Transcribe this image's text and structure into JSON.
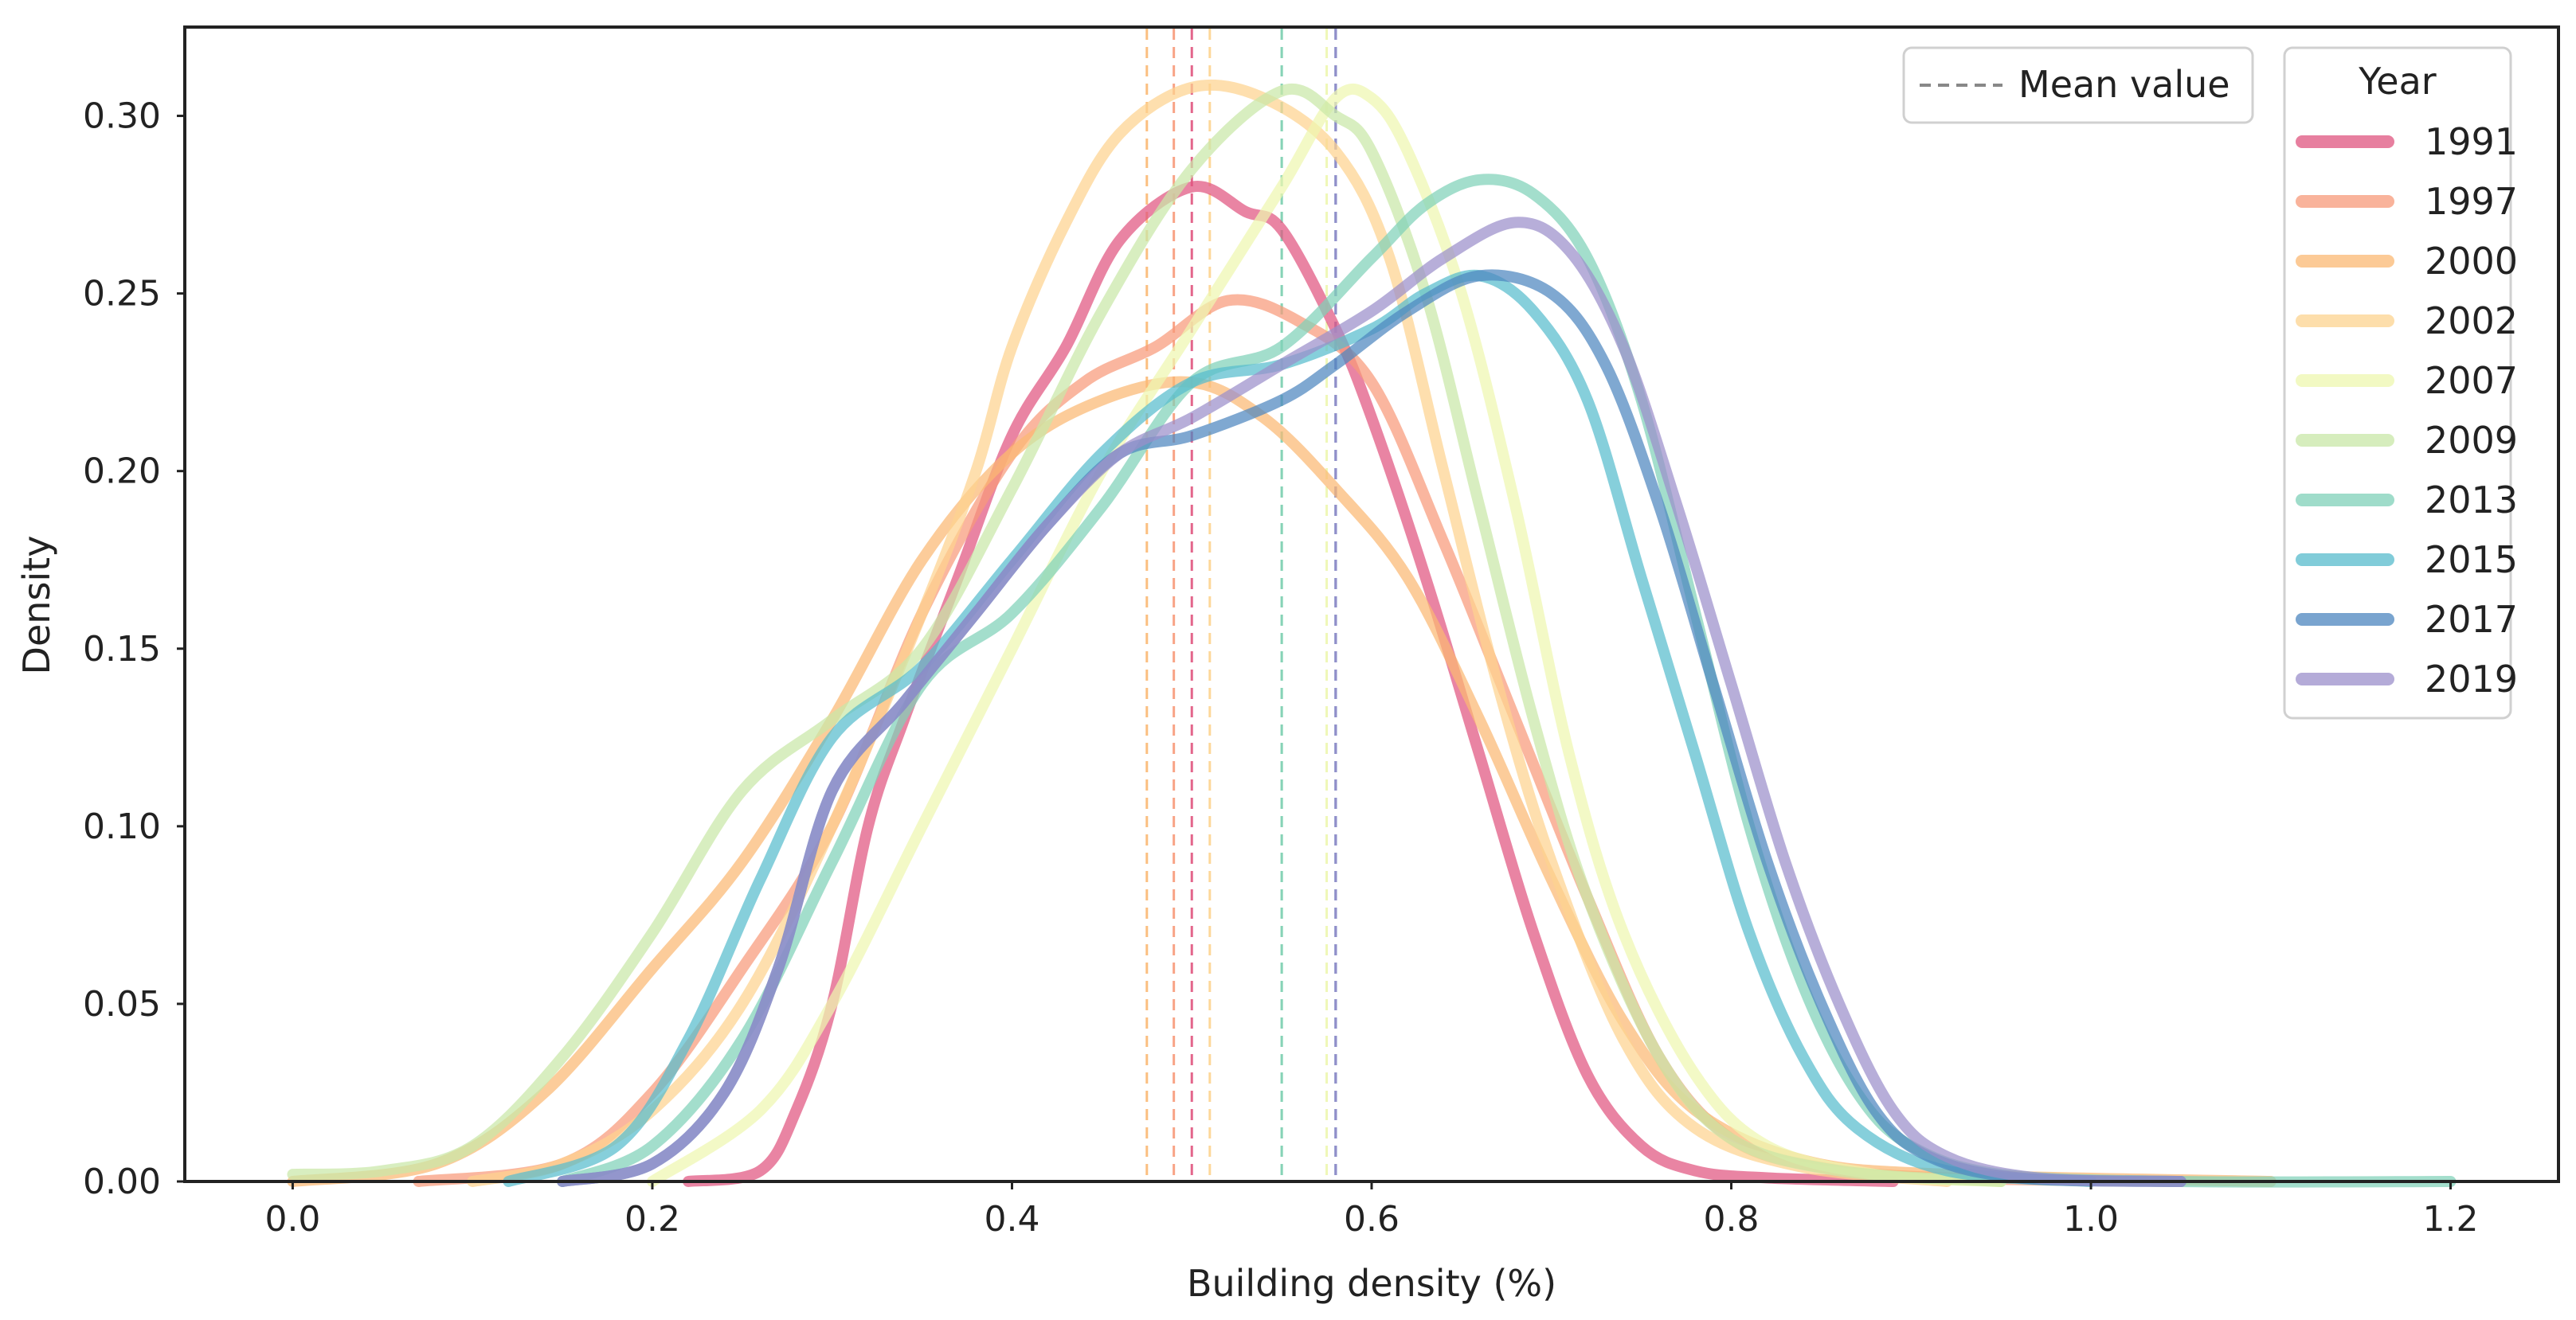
{
  "chart_data": {
    "type": "line",
    "title": "",
    "xlabel": "Building density (%)",
    "ylabel": "Density",
    "xlim": [
      -0.06,
      1.26
    ],
    "ylim": [
      0,
      0.325
    ],
    "xticks": [
      "0.0",
      "0.2",
      "0.4",
      "0.6",
      "0.8",
      "1.0",
      "1.2"
    ],
    "yticks": [
      "0.00",
      "0.05",
      "0.10",
      "0.15",
      "0.20",
      "0.25",
      "0.30"
    ],
    "grid": false,
    "legend": {
      "title": "Year",
      "placement": "top-right",
      "mean_label": "Mean value"
    },
    "series": [
      {
        "name": "1991",
        "color": "#e0557f",
        "mean": 0.5,
        "points": [
          [
            0.22,
            0
          ],
          [
            0.26,
            0.003
          ],
          [
            0.28,
            0.02
          ],
          [
            0.3,
            0.05
          ],
          [
            0.32,
            0.1
          ],
          [
            0.34,
            0.13
          ],
          [
            0.37,
            0.17
          ],
          [
            0.4,
            0.21
          ],
          [
            0.43,
            0.235
          ],
          [
            0.46,
            0.265
          ],
          [
            0.5,
            0.28
          ],
          [
            0.53,
            0.273
          ],
          [
            0.55,
            0.268
          ],
          [
            0.58,
            0.24
          ],
          [
            0.6,
            0.215
          ],
          [
            0.63,
            0.17
          ],
          [
            0.66,
            0.12
          ],
          [
            0.69,
            0.07
          ],
          [
            0.72,
            0.03
          ],
          [
            0.75,
            0.01
          ],
          [
            0.78,
            0.003
          ],
          [
            0.82,
            0.001
          ],
          [
            0.89,
            0
          ]
        ]
      },
      {
        "name": "1997",
        "color": "#f89a7a",
        "mean": 0.49,
        "points": [
          [
            0.07,
            0
          ],
          [
            0.15,
            0.005
          ],
          [
            0.2,
            0.025
          ],
          [
            0.25,
            0.06
          ],
          [
            0.3,
            0.1
          ],
          [
            0.35,
            0.16
          ],
          [
            0.4,
            0.205
          ],
          [
            0.44,
            0.225
          ],
          [
            0.48,
            0.235
          ],
          [
            0.52,
            0.248
          ],
          [
            0.56,
            0.242
          ],
          [
            0.6,
            0.225
          ],
          [
            0.64,
            0.18
          ],
          [
            0.68,
            0.13
          ],
          [
            0.72,
            0.08
          ],
          [
            0.76,
            0.035
          ],
          [
            0.8,
            0.012
          ],
          [
            0.85,
            0.004
          ],
          [
            0.92,
            0.001
          ],
          [
            1.05,
            0
          ]
        ]
      },
      {
        "name": "2000",
        "color": "#fbb973",
        "mean": 0.475,
        "points": [
          [
            0.0,
            0
          ],
          [
            0.08,
            0.005
          ],
          [
            0.14,
            0.025
          ],
          [
            0.2,
            0.06
          ],
          [
            0.25,
            0.09
          ],
          [
            0.3,
            0.13
          ],
          [
            0.35,
            0.175
          ],
          [
            0.4,
            0.205
          ],
          [
            0.45,
            0.22
          ],
          [
            0.5,
            0.225
          ],
          [
            0.54,
            0.215
          ],
          [
            0.58,
            0.195
          ],
          [
            0.62,
            0.17
          ],
          [
            0.66,
            0.13
          ],
          [
            0.7,
            0.085
          ],
          [
            0.74,
            0.045
          ],
          [
            0.78,
            0.02
          ],
          [
            0.84,
            0.006
          ],
          [
            0.92,
            0.002
          ],
          [
            1.1,
            0
          ]
        ]
      },
      {
        "name": "2002",
        "color": "#fdd38f",
        "mean": 0.51,
        "points": [
          [
            0.1,
            0
          ],
          [
            0.15,
            0.005
          ],
          [
            0.2,
            0.02
          ],
          [
            0.25,
            0.05
          ],
          [
            0.3,
            0.1
          ],
          [
            0.35,
            0.16
          ],
          [
            0.38,
            0.2
          ],
          [
            0.4,
            0.235
          ],
          [
            0.43,
            0.27
          ],
          [
            0.46,
            0.295
          ],
          [
            0.5,
            0.308
          ],
          [
            0.54,
            0.305
          ],
          [
            0.58,
            0.29
          ],
          [
            0.61,
            0.26
          ],
          [
            0.64,
            0.2
          ],
          [
            0.67,
            0.14
          ],
          [
            0.7,
            0.09
          ],
          [
            0.74,
            0.04
          ],
          [
            0.78,
            0.015
          ],
          [
            0.84,
            0.004
          ],
          [
            0.92,
            0
          ]
        ]
      },
      {
        "name": "2007",
        "color": "#eef7b0",
        "mean": 0.575,
        "points": [
          [
            0.2,
            0
          ],
          [
            0.26,
            0.02
          ],
          [
            0.3,
            0.05
          ],
          [
            0.35,
            0.1
          ],
          [
            0.4,
            0.15
          ],
          [
            0.45,
            0.2
          ],
          [
            0.5,
            0.24
          ],
          [
            0.55,
            0.28
          ],
          [
            0.58,
            0.305
          ],
          [
            0.6,
            0.305
          ],
          [
            0.62,
            0.29
          ],
          [
            0.65,
            0.25
          ],
          [
            0.68,
            0.19
          ],
          [
            0.71,
            0.12
          ],
          [
            0.74,
            0.07
          ],
          [
            0.78,
            0.03
          ],
          [
            0.82,
            0.01
          ],
          [
            0.88,
            0.002
          ],
          [
            0.95,
            0
          ]
        ]
      },
      {
        "name": "2009",
        "color": "#c9e8a8",
        "mean": 0.55,
        "points": [
          [
            0.0,
            0.002
          ],
          [
            0.05,
            0.003
          ],
          [
            0.1,
            0.01
          ],
          [
            0.15,
            0.035
          ],
          [
            0.2,
            0.07
          ],
          [
            0.25,
            0.11
          ],
          [
            0.3,
            0.13
          ],
          [
            0.35,
            0.15
          ],
          [
            0.4,
            0.195
          ],
          [
            0.45,
            0.245
          ],
          [
            0.5,
            0.285
          ],
          [
            0.55,
            0.307
          ],
          [
            0.58,
            0.3
          ],
          [
            0.6,
            0.29
          ],
          [
            0.63,
            0.25
          ],
          [
            0.66,
            0.19
          ],
          [
            0.69,
            0.13
          ],
          [
            0.72,
            0.08
          ],
          [
            0.76,
            0.035
          ],
          [
            0.8,
            0.012
          ],
          [
            0.86,
            0.003
          ],
          [
            0.95,
            0
          ]
        ]
      },
      {
        "name": "2013",
        "color": "#7fd1b9",
        "mean": 0.55,
        "points": [
          [
            0.15,
            0
          ],
          [
            0.2,
            0.01
          ],
          [
            0.25,
            0.04
          ],
          [
            0.3,
            0.09
          ],
          [
            0.35,
            0.14
          ],
          [
            0.4,
            0.16
          ],
          [
            0.45,
            0.19
          ],
          [
            0.5,
            0.225
          ],
          [
            0.55,
            0.235
          ],
          [
            0.6,
            0.26
          ],
          [
            0.63,
            0.275
          ],
          [
            0.66,
            0.282
          ],
          [
            0.69,
            0.278
          ],
          [
            0.72,
            0.26
          ],
          [
            0.75,
            0.22
          ],
          [
            0.78,
            0.16
          ],
          [
            0.81,
            0.1
          ],
          [
            0.84,
            0.055
          ],
          [
            0.87,
            0.025
          ],
          [
            0.9,
            0.01
          ],
          [
            0.95,
            0.002
          ],
          [
            1.05,
            0
          ],
          [
            1.2,
            0
          ]
        ]
      },
      {
        "name": "2015",
        "color": "#57bccd",
        "mean": 0.58,
        "points": [
          [
            0.12,
            0
          ],
          [
            0.18,
            0.01
          ],
          [
            0.22,
            0.04
          ],
          [
            0.26,
            0.085
          ],
          [
            0.3,
            0.125
          ],
          [
            0.35,
            0.145
          ],
          [
            0.4,
            0.175
          ],
          [
            0.45,
            0.205
          ],
          [
            0.5,
            0.225
          ],
          [
            0.55,
            0.23
          ],
          [
            0.6,
            0.24
          ],
          [
            0.63,
            0.25
          ],
          [
            0.66,
            0.255
          ],
          [
            0.69,
            0.245
          ],
          [
            0.72,
            0.22
          ],
          [
            0.75,
            0.17
          ],
          [
            0.78,
            0.12
          ],
          [
            0.81,
            0.07
          ],
          [
            0.84,
            0.035
          ],
          [
            0.87,
            0.015
          ],
          [
            0.92,
            0.003
          ],
          [
            1.0,
            0
          ]
        ]
      },
      {
        "name": "2017",
        "color": "#4d86bf",
        "mean": 0.58,
        "points": [
          [
            0.15,
            0
          ],
          [
            0.2,
            0.005
          ],
          [
            0.24,
            0.025
          ],
          [
            0.27,
            0.06
          ],
          [
            0.3,
            0.11
          ],
          [
            0.34,
            0.135
          ],
          [
            0.38,
            0.16
          ],
          [
            0.42,
            0.185
          ],
          [
            0.46,
            0.205
          ],
          [
            0.5,
            0.21
          ],
          [
            0.55,
            0.22
          ],
          [
            0.58,
            0.23
          ],
          [
            0.62,
            0.245
          ],
          [
            0.66,
            0.255
          ],
          [
            0.7,
            0.25
          ],
          [
            0.73,
            0.23
          ],
          [
            0.76,
            0.19
          ],
          [
            0.79,
            0.14
          ],
          [
            0.82,
            0.09
          ],
          [
            0.85,
            0.05
          ],
          [
            0.88,
            0.02
          ],
          [
            0.91,
            0.007
          ],
          [
            0.96,
            0.001
          ],
          [
            1.05,
            0
          ]
        ]
      },
      {
        "name": "2019",
        "color": "#9b8fcb",
        "mean": 0.58,
        "points": [
          [
            0.15,
            0
          ],
          [
            0.2,
            0.005
          ],
          [
            0.24,
            0.025
          ],
          [
            0.27,
            0.06
          ],
          [
            0.3,
            0.11
          ],
          [
            0.34,
            0.135
          ],
          [
            0.38,
            0.16
          ],
          [
            0.42,
            0.185
          ],
          [
            0.46,
            0.205
          ],
          [
            0.5,
            0.215
          ],
          [
            0.55,
            0.23
          ],
          [
            0.6,
            0.245
          ],
          [
            0.64,
            0.26
          ],
          [
            0.68,
            0.27
          ],
          [
            0.71,
            0.262
          ],
          [
            0.74,
            0.235
          ],
          [
            0.77,
            0.19
          ],
          [
            0.8,
            0.14
          ],
          [
            0.83,
            0.09
          ],
          [
            0.86,
            0.05
          ],
          [
            0.89,
            0.02
          ],
          [
            0.92,
            0.007
          ],
          [
            0.97,
            0.001
          ],
          [
            1.05,
            0
          ]
        ]
      }
    ]
  }
}
